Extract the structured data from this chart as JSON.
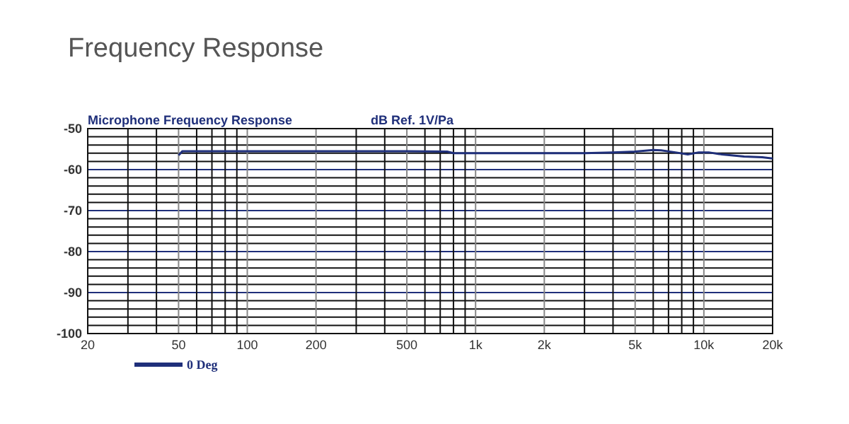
{
  "chart_data": {
    "type": "line",
    "title": "Frequency Response",
    "subtitle": "Microphone Frequency Response",
    "ylabel": "dB Ref. 1V/Pa",
    "log": "x",
    "xlim": [
      20,
      20000
    ],
    "ylim": [
      -100,
      -50
    ],
    "grid": true,
    "legend": "bottom left",
    "marker": "none",
    "line_style": "solid",
    "xticks": [
      20,
      {
        "value": 30,
        "label": null
      },
      {
        "value": 40,
        "label": null
      },
      50,
      {
        "value": 60,
        "label": null
      },
      {
        "value": 70,
        "label": null
      },
      {
        "value": 80,
        "label": null
      },
      {
        "value": 90,
        "label": null
      },
      100,
      200,
      {
        "value": 300,
        "label": null
      },
      {
        "value": 400,
        "label": null
      },
      500,
      {
        "value": 600,
        "label": null
      },
      {
        "value": 700,
        "label": null
      },
      {
        "value": 800,
        "label": null
      },
      {
        "value": 900,
        "label": null
      },
      {
        "value": 1000,
        "label": "1k"
      },
      {
        "value": 2000,
        "label": "2k"
      },
      {
        "value": 3000,
        "label": null
      },
      {
        "value": 4000,
        "label": null
      },
      {
        "value": 5000,
        "label": "5k"
      },
      {
        "value": 6000,
        "label": null
      },
      {
        "value": 7000,
        "label": null
      },
      {
        "value": 8000,
        "label": null
      },
      {
        "value": 9000,
        "label": null
      },
      {
        "value": 10000,
        "label": "10k"
      },
      {
        "value": 20000,
        "label": "20k"
      }
    ],
    "yticks": [
      -100,
      {
        "value": -98,
        "label": null
      },
      {
        "value": -96,
        "label": null
      },
      {
        "value": -94,
        "label": null
      },
      {
        "value": -92,
        "label": null
      },
      -90,
      {
        "value": -88,
        "label": null
      },
      {
        "value": -86,
        "label": null
      },
      {
        "value": -84,
        "label": null
      },
      {
        "value": -82,
        "label": null
      },
      -80,
      {
        "value": -78,
        "label": null
      },
      {
        "value": -76,
        "label": null
      },
      {
        "value": -74,
        "label": null
      },
      {
        "value": -72,
        "label": null
      },
      -70,
      {
        "value": -68,
        "label": null
      },
      {
        "value": -66,
        "label": null
      },
      {
        "value": -64,
        "label": null
      },
      {
        "value": -62,
        "label": null
      },
      -60,
      {
        "value": -58,
        "label": null
      },
      {
        "value": -56,
        "label": null
      },
      {
        "value": -54,
        "label": null
      },
      {
        "value": -52,
        "label": null
      },
      -50
    ],
    "series": [
      {
        "name": "0 Deg",
        "color": "#1f2f7a",
        "x": [
          50,
          52,
          100,
          500,
          750,
          800,
          1000,
          2000,
          3000,
          4000,
          5000,
          6000,
          6500,
          7500,
          8500,
          9500,
          10500,
          12000,
          15000,
          18000,
          20000
        ],
        "values": [
          -56.5,
          -55.5,
          -55.5,
          -55.5,
          -55.6,
          -56,
          -56,
          -56,
          -56,
          -55.8,
          -55.6,
          -55.2,
          -55.3,
          -55.8,
          -56.3,
          -55.8,
          -55.8,
          -56.3,
          -56.8,
          -57,
          -57.3
        ]
      }
    ]
  }
}
